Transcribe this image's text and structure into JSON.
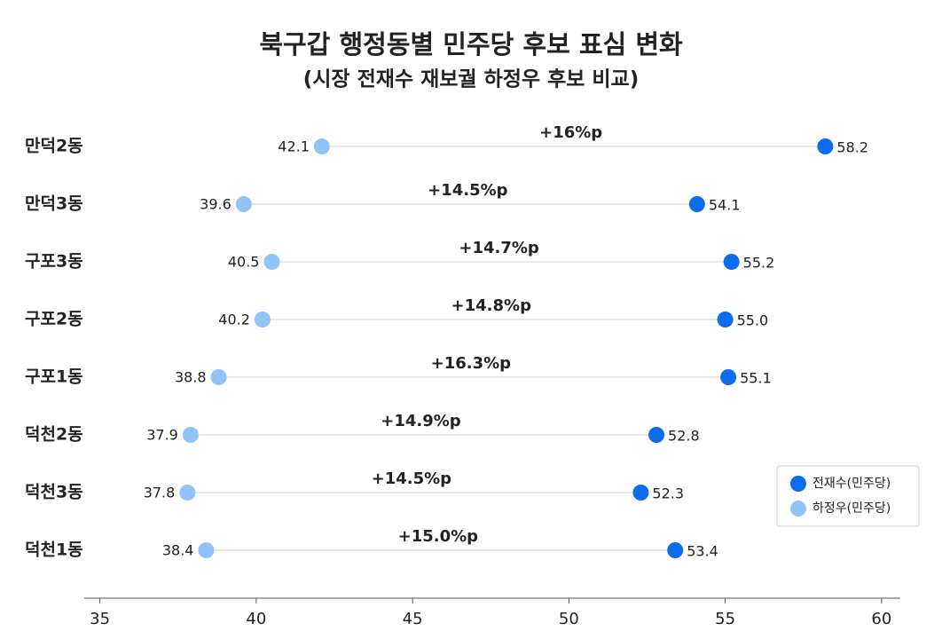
{
  "chart_data": {
    "type": "dumbbell",
    "title": "북구갑 행정동별 민주당 후보 표심 변화",
    "subtitle": "(시장 전재수 재보궐 하정우 후보 비교)",
    "categories": [
      "만덕2동",
      "만덕3동",
      "구포3동",
      "구포2동",
      "구포1동",
      "덕천2동",
      "덕천3동",
      "덕천1동"
    ],
    "series": [
      {
        "name": "전재수(민주당)",
        "color": "#0b6cee",
        "values": [
          58.2,
          54.1,
          55.2,
          55.0,
          55.1,
          52.8,
          52.3,
          53.4
        ],
        "value_labels": [
          "58.2",
          "54.1",
          "55.2",
          "55.0",
          "55.1",
          "52.8",
          "52.3",
          "53.4"
        ]
      },
      {
        "name": "하정우(민주당)",
        "color": "#92c3f6",
        "values": [
          42.1,
          39.6,
          40.5,
          40.2,
          38.8,
          37.9,
          37.8,
          38.4
        ]
      }
    ],
    "annotations": [
      "+16%p",
      "+14.5%p",
      "+14.7%p",
      "+14.8%p",
      "+16.3%p",
      "+14.9%p",
      "+14.5%p",
      "+15.0%p"
    ],
    "xlim": [
      34.5,
      60.6
    ],
    "xticks": [
      35,
      40,
      45,
      50,
      55,
      60
    ],
    "legend": "lower right"
  }
}
